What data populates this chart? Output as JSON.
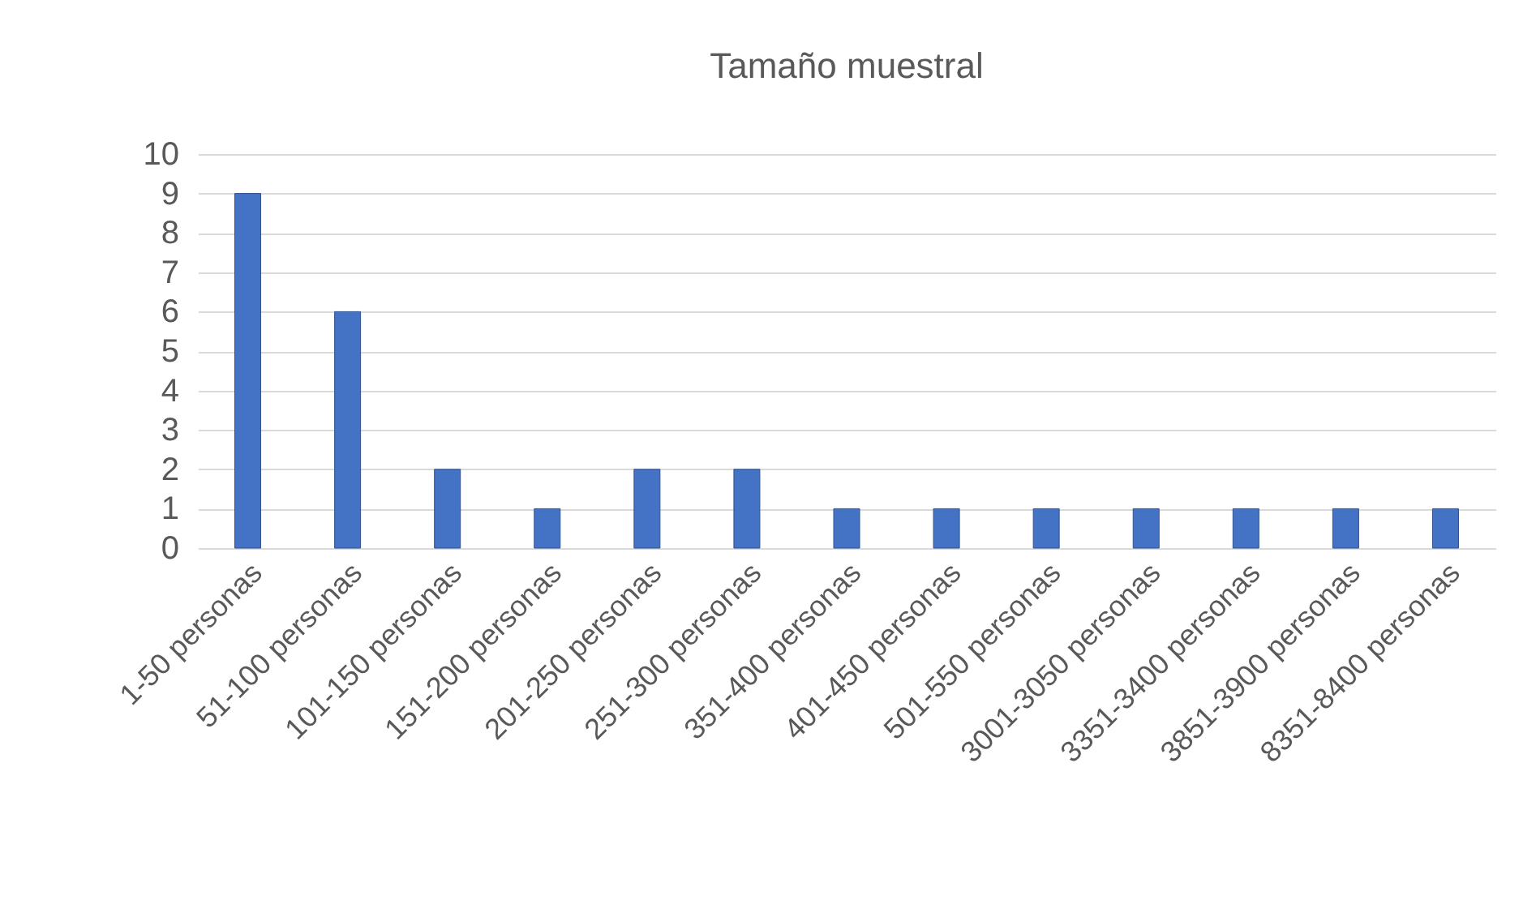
{
  "chart_data": {
    "type": "bar",
    "title": "Tamaño muestral",
    "categories": [
      "1-50 personas",
      "51-100 personas",
      "101-150 personas",
      "151-200 personas",
      "201-250 personas",
      "251-300 personas",
      "351-400 personas",
      "401-450 personas",
      "501-550 personas",
      "3001-3050 personas",
      "3351-3400 personas",
      "3851-3900 personas",
      "8351-8400 personas"
    ],
    "values": [
      9,
      6,
      2,
      1,
      2,
      2,
      1,
      1,
      1,
      1,
      1,
      1,
      1
    ],
    "color": "#4472c4",
    "ylim": [
      0,
      10
    ],
    "yticks": [
      0,
      1,
      2,
      3,
      4,
      5,
      6,
      7,
      8,
      9,
      10
    ],
    "grid": "y"
  }
}
